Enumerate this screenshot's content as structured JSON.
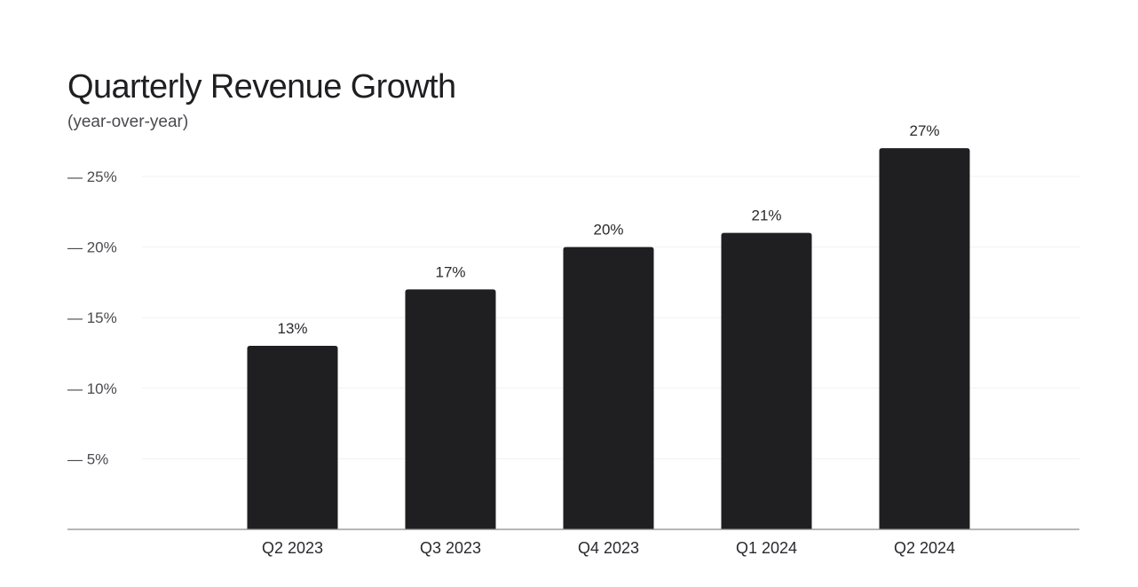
{
  "chart_data": {
    "type": "bar",
    "title": "Quarterly Revenue Growth",
    "subtitle": "(year-over-year)",
    "xlabel": "",
    "ylabel": "",
    "categories": [
      "Q2 2023",
      "Q3 2023",
      "Q4 2023",
      "Q1 2024",
      "Q2 2024"
    ],
    "values": [
      13,
      17,
      20,
      21,
      27
    ],
    "data_labels": [
      "13%",
      "17%",
      "20%",
      "21%",
      "27%"
    ],
    "ylim": [
      0,
      27
    ],
    "yticks": [
      5,
      10,
      15,
      20,
      25
    ],
    "ytick_labels": [
      "5%",
      "10%",
      "15%",
      "20%",
      "25%"
    ],
    "grid": true,
    "legend": "none",
    "colors": {
      "bar": "#1f1f22",
      "grid": "#f1f1f1",
      "axis": "#8a8a8a",
      "text": "#2a2a2e"
    }
  }
}
